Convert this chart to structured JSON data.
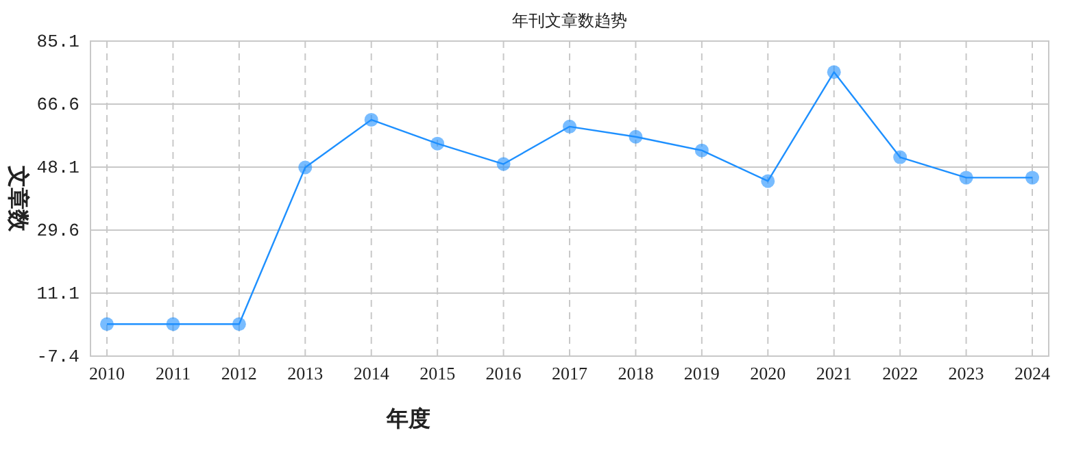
{
  "chart_data": {
    "type": "line",
    "title": "年刊文章数趋势",
    "xlabel": "年度",
    "ylabel": "文章数",
    "categories": [
      "2010",
      "2011",
      "2012",
      "2013",
      "2014",
      "2015",
      "2016",
      "2017",
      "2018",
      "2019",
      "2020",
      "2021",
      "2022",
      "2023",
      "2024"
    ],
    "series": [
      {
        "color": "#1e90ff",
        "values": [
          2,
          2,
          2,
          48,
          62,
          55,
          49,
          60,
          57,
          53,
          44,
          76,
          51,
          45,
          45
        ]
      }
    ],
    "ylim": [
      -7.4,
      85.1
    ],
    "yticks": [
      -7.4,
      11.1,
      29.6,
      48.1,
      66.6,
      85.1
    ],
    "grid": true,
    "marker": "circle",
    "line_style": "solid"
  }
}
